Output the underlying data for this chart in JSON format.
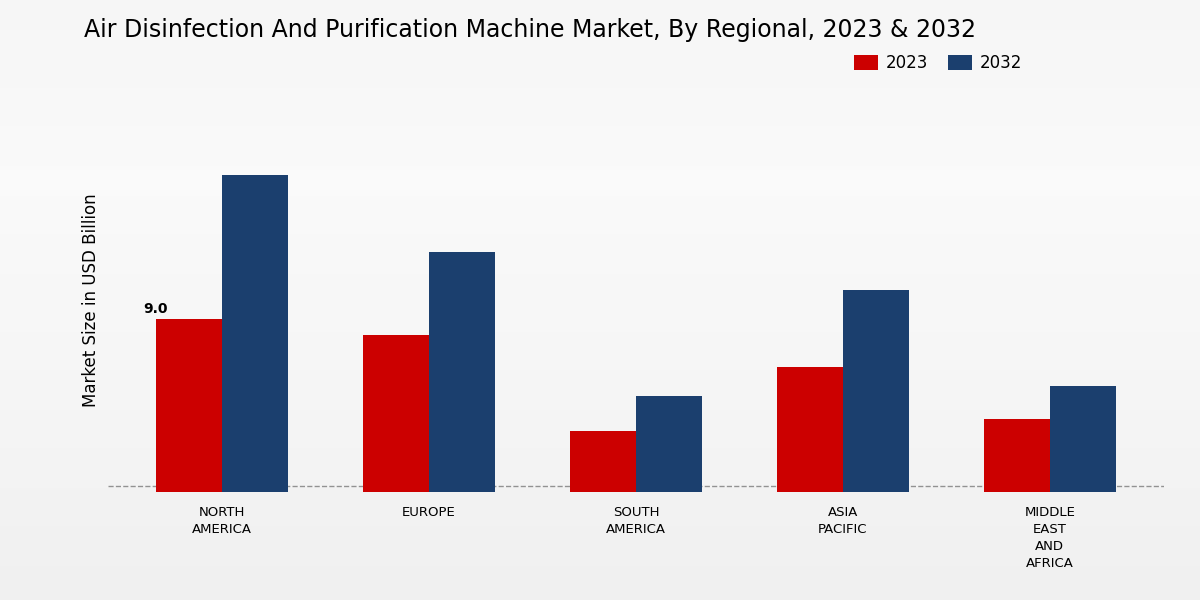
{
  "title": "Air Disinfection And Purification Machine Market, By Regional, 2023 & 2032",
  "ylabel": "Market Size in USD Billion",
  "categories": [
    "NORTH\nAMERICA",
    "EUROPE",
    "SOUTH\nAMERICA",
    "ASIA\nPACIFIC",
    "MIDDLE\nEAST\nAND\nAFRICA"
  ],
  "values_2023": [
    9.0,
    8.2,
    3.2,
    6.5,
    3.8
  ],
  "values_2032": [
    16.5,
    12.5,
    5.0,
    10.5,
    5.5
  ],
  "color_2023": "#cc0000",
  "color_2032": "#1b3f6e",
  "annotation_text": "9.0",
  "annotation_bar_index": 0,
  "legend_labels": [
    "2023",
    "2032"
  ],
  "bar_width": 0.32,
  "ylim": [
    0,
    20
  ],
  "dashed_line_y": 0.3,
  "title_fontsize": 17,
  "axis_label_fontsize": 12,
  "tick_label_fontsize": 9.5,
  "legend_fontsize": 12,
  "annotation_fontsize": 10,
  "bg_light": "#f0f0f0",
  "bg_dark": "#c8c8c8"
}
